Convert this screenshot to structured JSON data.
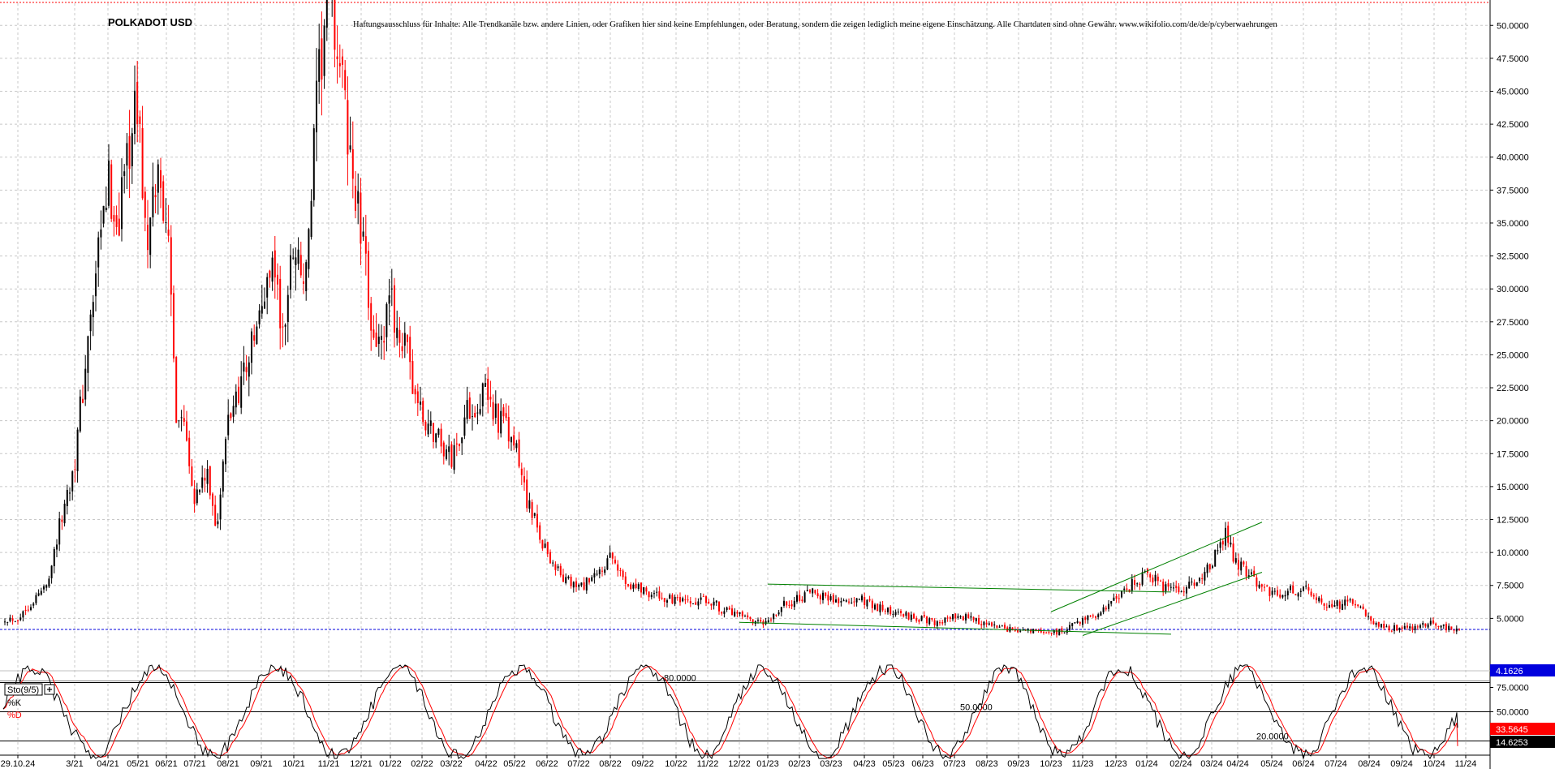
{
  "chart_data": [
    {
      "type": "candlestick",
      "title": "POLKADOT USD",
      "subtitle": "Haftungsausschluss für Inhalte: Alle Trendkanäle bzw. andere Linien, oder Grafiken hier sind keine Empfehlungen, oder Beratung, sondern die zeigen lediglich meine eigene Einschätzung. Alle Chartdaten sind ohne Gewähr. www.wikifolio.com/de/de/p/cyberwaehrungen",
      "ylim": [
        3.4,
        54.5
      ],
      "y_ticks": [
        "52.5000",
        "50.0000",
        "47.5000",
        "45.0000",
        "42.5000",
        "40.0000",
        "37.5000",
        "35.0000",
        "32.5000",
        "30.0000",
        "27.5000",
        "25.0000",
        "22.5000",
        "20.0000",
        "17.5000",
        "15.0000",
        "12.5000",
        "10.0000",
        "7.5000",
        "5.0000"
      ],
      "y_tick_values": [
        52.5,
        50,
        47.5,
        45,
        42.5,
        40,
        37.5,
        35,
        32.5,
        30,
        27.5,
        25,
        22.5,
        20,
        17.5,
        15,
        12.5,
        10,
        7.5,
        5
      ],
      "x_ticks": [
        "29.10.24",
        "3/21",
        "04/21",
        "05/21",
        "06/21",
        "07/21",
        "08/21",
        "09/21",
        "10/21",
        "11/21",
        "12/21",
        "01/22",
        "02/22",
        "03/22",
        "04/22",
        "05/22",
        "06/22",
        "07/22",
        "08/22",
        "09/22",
        "10/22",
        "11/22",
        "12/22",
        "01/23",
        "02/23",
        "03/23",
        "04/23",
        "05/23",
        "06/23",
        "07/23",
        "08/23",
        "09/23",
        "10/23",
        "11/23",
        "12/23",
        "01/24",
        "02/24",
        "03/24",
        "04/24",
        "05/24",
        "06/24",
        "07/24",
        "08/24",
        "09/24",
        "10/24",
        "11/24"
      ],
      "grid": true,
      "last_price_label": "4.1626",
      "last_price": 4.1626,
      "up_color": "#000000",
      "down_color": "#ff0000",
      "price_path": [
        [
          "29.10.24",
          5.0
        ],
        [
          "29.10.24",
          7.5
        ],
        [
          "3/21",
          17
        ],
        [
          "3/21",
          28
        ],
        [
          "04/21",
          38
        ],
        [
          "04/21",
          35
        ],
        [
          "04/21",
          41
        ],
        [
          "05/21",
          44
        ],
        [
          "05/21",
          32
        ],
        [
          "05/21",
          39
        ],
        [
          "06/21",
          36
        ],
        [
          "06/21",
          21
        ],
        [
          "06/21",
          20
        ],
        [
          "07/21",
          14
        ],
        [
          "07/21",
          16
        ],
        [
          "07/21",
          12
        ],
        [
          "08/21",
          20
        ],
        [
          "08/21",
          24
        ],
        [
          "09/21",
          28
        ],
        [
          "09/21",
          33
        ],
        [
          "09/21",
          26
        ],
        [
          "10/21",
          34
        ],
        [
          "10/21",
          30
        ],
        [
          "10/21",
          44
        ],
        [
          "11/21",
          53.5
        ],
        [
          "11/21",
          47
        ],
        [
          "11/21",
          40
        ],
        [
          "12/21",
          34
        ],
        [
          "12/21",
          28
        ],
        [
          "12/21",
          25
        ],
        [
          "01/22",
          29
        ],
        [
          "01/22",
          25
        ],
        [
          "02/22",
          20
        ],
        [
          "02/22",
          19
        ],
        [
          "03/22",
          17
        ],
        [
          "03/22",
          21
        ],
        [
          "04/22",
          22
        ],
        [
          "04/22",
          20
        ],
        [
          "05/22",
          18
        ],
        [
          "05/22",
          13
        ],
        [
          "06/22",
          10
        ],
        [
          "06/22",
          8
        ],
        [
          "07/22",
          7.3
        ],
        [
          "07/22",
          8
        ],
        [
          "08/22",
          9.5
        ],
        [
          "08/22",
          7.8
        ],
        [
          "09/22",
          7.2
        ],
        [
          "09/22",
          6.6
        ],
        [
          "10/22",
          6.3
        ],
        [
          "10/22",
          6.0
        ],
        [
          "11/22",
          6.5
        ],
        [
          "11/22",
          5.6
        ],
        [
          "12/22",
          5.2
        ],
        [
          "12/22",
          4.6
        ],
        [
          "01/23",
          4.6
        ],
        [
          "01/23",
          6.0
        ],
        [
          "02/23",
          6.5
        ],
        [
          "02/23",
          7.0
        ],
        [
          "03/23",
          6.5
        ],
        [
          "03/23",
          6.2
        ],
        [
          "04/23",
          6.4
        ],
        [
          "04/23",
          5.8
        ],
        [
          "05/23",
          5.4
        ],
        [
          "05/23",
          5.2
        ],
        [
          "06/23",
          4.9
        ],
        [
          "06/23",
          4.7
        ],
        [
          "07/23",
          5.1
        ],
        [
          "07/23",
          5.0
        ],
        [
          "08/23",
          4.5
        ],
        [
          "08/23",
          4.2
        ],
        [
          "09/23",
          4.1
        ],
        [
          "09/23",
          4.0
        ],
        [
          "10/23",
          3.9
        ],
        [
          "10/23",
          4.1
        ],
        [
          "11/23",
          5.0
        ],
        [
          "11/23",
          5.3
        ],
        [
          "12/23",
          6.5
        ],
        [
          "12/23",
          7.5
        ],
        [
          "01/24",
          8.5
        ],
        [
          "01/24",
          7.2
        ],
        [
          "02/24",
          7.0
        ],
        [
          "02/24",
          7.8
        ],
        [
          "03/24",
          9.0
        ],
        [
          "03/24",
          11.5
        ],
        [
          "04/24",
          9.0
        ],
        [
          "04/24",
          8.0
        ],
        [
          "05/24",
          6.8
        ],
        [
          "05/24",
          7.0
        ],
        [
          "06/24",
          7.2
        ],
        [
          "06/24",
          6.3
        ],
        [
          "07/24",
          6.0
        ],
        [
          "07/24",
          6.2
        ],
        [
          "08/24",
          5.0
        ],
        [
          "08/24",
          4.3
        ],
        [
          "09/24",
          4.2
        ],
        [
          "09/24",
          4.4
        ],
        [
          "10/24",
          4.6
        ],
        [
          "10/24",
          4.2
        ],
        [
          "11/24",
          4.16
        ]
      ],
      "annotations": [
        {
          "type": "trendline",
          "from": [
            "01/23",
            7.6
          ],
          "to": [
            "01/24",
            7.0
          ],
          "color": "#008000"
        },
        {
          "type": "trendline",
          "from": [
            "12/22",
            4.7
          ],
          "to": [
            "01/24",
            3.8
          ],
          "color": "#008000"
        },
        {
          "type": "trendline",
          "from": [
            "10/23",
            5.5
          ],
          "to": [
            "04/24",
            12.3
          ],
          "color": "#008000"
        },
        {
          "type": "trendline",
          "from": [
            "11/23",
            3.7
          ],
          "to": [
            "04/24",
            8.5
          ],
          "color": "#008000"
        }
      ]
    },
    {
      "type": "line",
      "title": "Sto(9/5)",
      "series": [
        {
          "name": "%K",
          "color": "#000000"
        },
        {
          "name": "%D",
          "color": "#ff0000"
        }
      ],
      "ylim": [
        0,
        100
      ],
      "y_ticks": [
        "75.0000",
        "50.0000"
      ],
      "y_tick_values": [
        75,
        50
      ],
      "levels": [
        {
          "value": 80,
          "label": "80.0000"
        },
        {
          "value": 50,
          "label": "50.0000"
        },
        {
          "value": 20,
          "label": "20.0000"
        }
      ],
      "last_k_label": "33.5645",
      "last_d_label": "14.6253",
      "last_k": 33.5645,
      "last_d": 14.6253
    }
  ]
}
